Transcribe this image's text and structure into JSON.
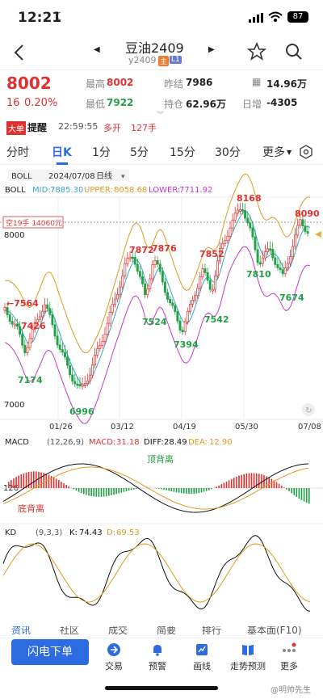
{
  "status": {
    "time": "12:21",
    "battery": "87"
  },
  "nav": {
    "title": "豆油2409",
    "subtitle": "y2409",
    "badge_main": "主",
    "badge_l1": "L1"
  },
  "quote": {
    "price": "8002",
    "change": "16",
    "change_pct": "0.20%",
    "high_label": "最高",
    "high": "8002",
    "low_label": "最低",
    "low": "7922",
    "prev_label": "昨结",
    "prev": "7986",
    "oi_label": "持仓",
    "oi": "62.96万",
    "vol_label": "量",
    "vol": "14.96万",
    "daily_label": "日增",
    "daily": "-4305"
  },
  "alert": {
    "tag": "大单",
    "label": "提醒",
    "time": "22:59:55",
    "action": "多开",
    "qty": "127手"
  },
  "tabs": [
    "分时",
    "日K",
    "1分",
    "5分",
    "15分",
    "30分",
    "更多"
  ],
  "active_tab": "日K",
  "chart_header": {
    "indicator": "BOLL",
    "date": "2024/07/08",
    "period": "日线"
  },
  "boll": {
    "name": "BOLL",
    "mid_label": "MID:",
    "mid": "7885.30",
    "upper_label": "UPPER:",
    "upper": "8058.68",
    "lower_label": "LOWER:",
    "lower": "7711.92"
  },
  "position_tag": "空19手  14060元",
  "price_labels": {
    "top": "8000",
    "bottom": "7000"
  },
  "annotations": [
    "8168",
    "8090",
    "7872",
    "7876",
    "7852",
    "7810",
    "7674",
    "7524",
    "7542",
    "7394",
    "7564",
    "7426",
    "7174",
    "6996"
  ],
  "x_labels": [
    "01/26",
    "03/12",
    "04/19",
    "05/30",
    "07/08"
  ],
  "macd": {
    "name": "MACD",
    "params": "(12,26,9)",
    "macd_label": "MACD:",
    "macd": "31.18",
    "diff_label": "DIFF:",
    "diff": "28.49",
    "dea_label": "DEA:",
    "dea": "12.90",
    "div_top": "顶背离",
    "div_bottom": "底背离",
    "axis": "126"
  },
  "kd": {
    "name": "KD",
    "params": "(9,3,3)",
    "k_label": "K:",
    "k": "74.43",
    "d_label": "D:",
    "d": "69.53"
  },
  "news_tabs": [
    "资讯",
    "社区",
    "成交",
    "简要",
    "排行",
    "基本面(F10)"
  ],
  "bottom": {
    "flash_button": "闪电下单",
    "items": [
      "交易",
      "预警",
      "画线",
      "走势预测",
      "更多"
    ]
  },
  "watermark": "@明帅先生",
  "colors": {
    "up": "#e03131",
    "down": "#22a046",
    "mid": "#3ba6c9",
    "upper": "#e09a1a",
    "lower": "#c23bc9",
    "accent": "#2c6be0"
  }
}
